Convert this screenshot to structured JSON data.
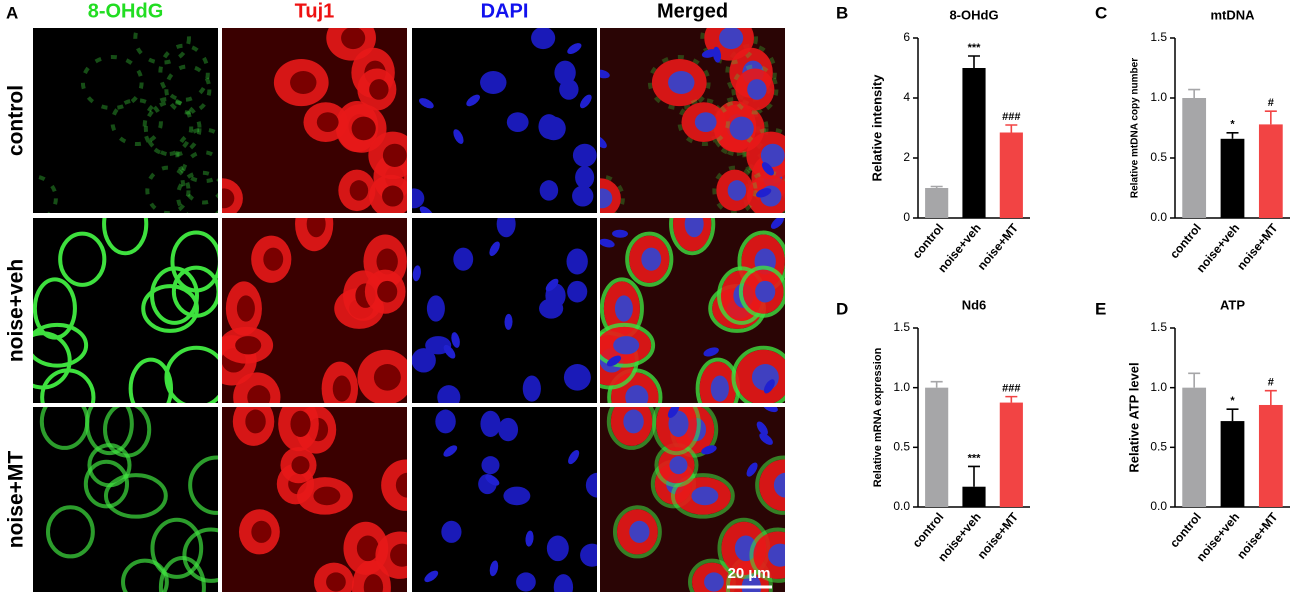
{
  "figure": {
    "panel_label": "A",
    "columns": [
      {
        "text": "8-OHdG",
        "color": "#22dd22"
      },
      {
        "text": "Tuj1",
        "color": "#ee1111"
      },
      {
        "text": "DAPI",
        "color": "#1111ee"
      },
      {
        "text": "Merged",
        "color": "#000000"
      }
    ],
    "rows": [
      "control",
      "noise+veh",
      "noise+MT"
    ],
    "scale_bar": "20 µm"
  },
  "chart_data": [
    {
      "type": "bar",
      "panel_label": "B",
      "title": "8-OHdG",
      "y_label": "Relative intensity",
      "categories": [
        "control",
        "noise+veh",
        "noise+MT"
      ],
      "values": [
        1.0,
        5.0,
        2.85
      ],
      "errors": [
        0.05,
        0.4,
        0.25
      ],
      "colors": [
        "#a6a6a8",
        "#000000",
        "#f24444"
      ],
      "value_annotations": [
        null,
        "***",
        "###"
      ],
      "ylim": [
        0,
        6
      ],
      "yticks": [
        0,
        2,
        4,
        6
      ]
    },
    {
      "type": "bar",
      "panel_label": "C",
      "title": "mtDNA",
      "y_label": "Relative mtDNA copy number",
      "categories": [
        "control",
        "noise+veh",
        "noise+MT"
      ],
      "values": [
        1.0,
        0.66,
        0.78
      ],
      "errors": [
        0.07,
        0.05,
        0.11
      ],
      "colors": [
        "#a6a6a8",
        "#000000",
        "#f24444"
      ],
      "value_annotations": [
        null,
        "*",
        "#"
      ],
      "ylim": [
        0,
        1.5
      ],
      "yticks": [
        {
          "value": 0,
          "label": "0.0"
        },
        0.5,
        {
          "value": 1,
          "label": "1.0"
        },
        1.5
      ]
    },
    {
      "type": "bar",
      "panel_label": "D",
      "title": "Nd6",
      "y_label": "Relative mRNA expression",
      "categories": [
        "control",
        "noise+veh",
        "noise+MT"
      ],
      "values": [
        1.0,
        0.17,
        0.875
      ],
      "errors": [
        0.05,
        0.17,
        0.05
      ],
      "colors": [
        "#a6a6a8",
        "#000000",
        "#f24444"
      ],
      "value_annotations": [
        null,
        "***",
        "###"
      ],
      "ylim": [
        0,
        1.5
      ],
      "yticks": [
        {
          "value": 0,
          "label": "0.0"
        },
        0.5,
        {
          "value": 1,
          "label": "1.0"
        },
        1.5
      ]
    },
    {
      "type": "bar",
      "panel_label": "E",
      "title": "ATP",
      "y_label": "Relative ATP level",
      "categories": [
        "control",
        "noise+veh",
        "noise+MT"
      ],
      "values": [
        1.0,
        0.72,
        0.855
      ],
      "errors": [
        0.12,
        0.1,
        0.12
      ],
      "colors": [
        "#a6a6a8",
        "#000000",
        "#f24444"
      ],
      "value_annotations": [
        null,
        "*",
        "#"
      ],
      "ylim": [
        0,
        1.5
      ],
      "yticks": [
        {
          "value": 0,
          "label": "0.0"
        },
        0.5,
        {
          "value": 1,
          "label": "1.0"
        },
        1.5
      ]
    }
  ]
}
